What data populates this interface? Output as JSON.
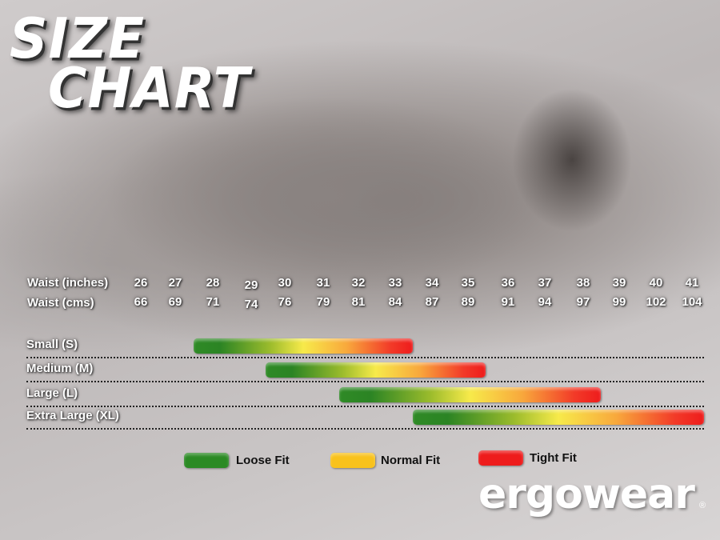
{
  "title_line1": "SIZE",
  "title_line2": "CHART",
  "chart_data": {
    "type": "range-bar",
    "row_labels": {
      "inches": "Waist (inches)",
      "cms": "Waist (cms)"
    },
    "waist_inches": [
      26,
      27,
      28,
      29,
      30,
      31,
      32,
      33,
      34,
      35,
      36,
      37,
      38,
      39,
      40,
      41
    ],
    "waist_cms": [
      66,
      69,
      71,
      74,
      76,
      79,
      81,
      84,
      87,
      89,
      91,
      94,
      97,
      99,
      102,
      104
    ],
    "sizes": [
      {
        "label": "Small (S)",
        "from_in": 28,
        "to_in": 33
      },
      {
        "label": "Medium (M)",
        "from_in": 30,
        "to_in": 35
      },
      {
        "label": "Large (L)",
        "from_in": 32,
        "to_in": 38
      },
      {
        "label": "Extra Large (XL)",
        "from_in": 34,
        "to_in": 41
      }
    ],
    "legend": [
      {
        "label": "Loose Fit",
        "color": "#2b8a24"
      },
      {
        "label": "Normal Fit",
        "color": "#f8c21c"
      },
      {
        "label": "Tight Fit",
        "color": "#ee1c1c"
      }
    ]
  },
  "logo": "ergowear",
  "logo_mark": "®"
}
